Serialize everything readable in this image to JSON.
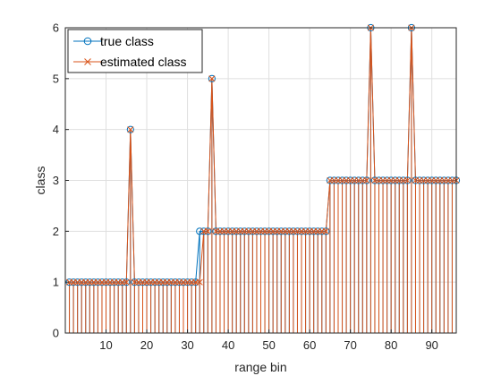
{
  "chart_data": {
    "type": "stem",
    "title": "",
    "xlabel": "range bin",
    "ylabel": "class",
    "xlim": [
      0,
      96
    ],
    "ylim": [
      0,
      6
    ],
    "xticks": [
      10,
      20,
      30,
      40,
      50,
      60,
      70,
      80,
      90
    ],
    "yticks": [
      0,
      1,
      2,
      3,
      4,
      5,
      6
    ],
    "grid": true,
    "legend_position": "top-left",
    "colors": {
      "true_class": "#0072BD",
      "estimated_class": "#D95319"
    },
    "series": [
      {
        "name": "true class",
        "marker": "circle",
        "x": [
          1,
          2,
          3,
          4,
          5,
          6,
          7,
          8,
          9,
          10,
          11,
          12,
          13,
          14,
          15,
          16,
          17,
          18,
          19,
          20,
          21,
          22,
          23,
          24,
          25,
          26,
          27,
          28,
          29,
          30,
          31,
          32,
          33,
          34,
          35,
          36,
          37,
          38,
          39,
          40,
          41,
          42,
          43,
          44,
          45,
          46,
          47,
          48,
          49,
          50,
          51,
          52,
          53,
          54,
          55,
          56,
          57,
          58,
          59,
          60,
          61,
          62,
          63,
          64,
          65,
          66,
          67,
          68,
          69,
          70,
          71,
          72,
          73,
          74,
          75,
          76,
          77,
          78,
          79,
          80,
          81,
          82,
          83,
          84,
          85,
          86,
          87,
          88,
          89,
          90,
          91,
          92,
          93,
          94,
          95,
          96
        ],
        "values": [
          1,
          1,
          1,
          1,
          1,
          1,
          1,
          1,
          1,
          1,
          1,
          1,
          1,
          1,
          1,
          4,
          1,
          1,
          1,
          1,
          1,
          1,
          1,
          1,
          1,
          1,
          1,
          1,
          1,
          1,
          1,
          1,
          2,
          2,
          2,
          5,
          2,
          2,
          2,
          2,
          2,
          2,
          2,
          2,
          2,
          2,
          2,
          2,
          2,
          2,
          2,
          2,
          2,
          2,
          2,
          2,
          2,
          2,
          2,
          2,
          2,
          2,
          2,
          2,
          3,
          3,
          3,
          3,
          3,
          3,
          3,
          3,
          3,
          3,
          6,
          3,
          3,
          3,
          3,
          3,
          3,
          3,
          3,
          3,
          6,
          3,
          3,
          3,
          3,
          3,
          3,
          3,
          3,
          3,
          3,
          3
        ]
      },
      {
        "name": "estimated class",
        "marker": "x",
        "x": [
          1,
          2,
          3,
          4,
          5,
          6,
          7,
          8,
          9,
          10,
          11,
          12,
          13,
          14,
          15,
          16,
          17,
          18,
          19,
          20,
          21,
          22,
          23,
          24,
          25,
          26,
          27,
          28,
          29,
          30,
          31,
          32,
          33,
          34,
          35,
          36,
          37,
          38,
          39,
          40,
          41,
          42,
          43,
          44,
          45,
          46,
          47,
          48,
          49,
          50,
          51,
          52,
          53,
          54,
          55,
          56,
          57,
          58,
          59,
          60,
          61,
          62,
          63,
          64,
          65,
          66,
          67,
          68,
          69,
          70,
          71,
          72,
          73,
          74,
          75,
          76,
          77,
          78,
          79,
          80,
          81,
          82,
          83,
          84,
          85,
          86,
          87,
          88,
          89,
          90,
          91,
          92,
          93,
          94,
          95,
          96
        ],
        "values": [
          1,
          1,
          1,
          1,
          1,
          1,
          1,
          1,
          1,
          1,
          1,
          1,
          1,
          1,
          1,
          4,
          1,
          1,
          1,
          1,
          1,
          1,
          1,
          1,
          1,
          1,
          1,
          1,
          1,
          1,
          1,
          1,
          1,
          2,
          2,
          5,
          2,
          2,
          2,
          2,
          2,
          2,
          2,
          2,
          2,
          2,
          2,
          2,
          2,
          2,
          2,
          2,
          2,
          2,
          2,
          2,
          2,
          2,
          2,
          2,
          2,
          2,
          2,
          2,
          3,
          3,
          3,
          3,
          3,
          3,
          3,
          3,
          3,
          3,
          6,
          3,
          3,
          3,
          3,
          3,
          3,
          3,
          3,
          3,
          6,
          3,
          3,
          3,
          3,
          3,
          3,
          3,
          3,
          3,
          3,
          3
        ]
      }
    ]
  }
}
